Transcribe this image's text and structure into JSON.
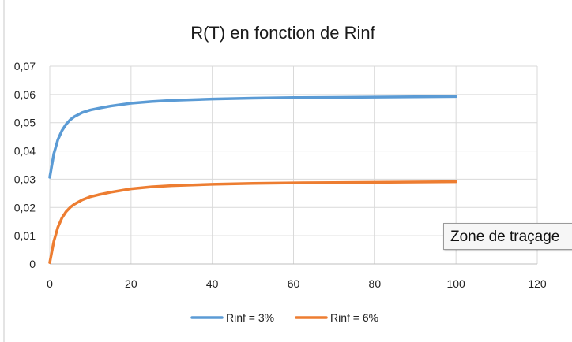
{
  "chart_data": {
    "type": "line",
    "title": "R(T) en fonction de Rinf",
    "xlabel": "",
    "ylabel": "",
    "xlim": [
      0,
      120
    ],
    "ylim": [
      0,
      0.07
    ],
    "x_ticks": [
      0,
      20,
      40,
      60,
      80,
      100,
      120
    ],
    "x_tick_labels": [
      "0",
      "20",
      "40",
      "60",
      "80",
      "100",
      "120"
    ],
    "y_ticks": [
      0,
      0.01,
      0.02,
      0.03,
      0.04,
      0.05,
      0.06,
      0.07
    ],
    "y_tick_labels": [
      "0",
      "0,01",
      "0,02",
      "0,03",
      "0,04",
      "0,05",
      "0,06",
      "0,07"
    ],
    "grid": true,
    "legend_position": "bottom",
    "x": [
      0,
      1,
      2,
      3,
      4,
      5,
      6,
      8,
      10,
      12,
      15,
      20,
      25,
      30,
      40,
      50,
      60,
      70,
      80,
      90,
      100
    ],
    "series": [
      {
        "name": "Rinf = 3%",
        "color": "#5b9bd5",
        "values": [
          0.0307,
          0.039,
          0.044,
          0.0472,
          0.0494,
          0.051,
          0.0521,
          0.0536,
          0.0545,
          0.0551,
          0.0559,
          0.0569,
          0.0575,
          0.0579,
          0.0584,
          0.0587,
          0.0589,
          0.059,
          0.0591,
          0.0592,
          0.0593
        ]
      },
      {
        "name": "Rinf = 6%",
        "color": "#ed7d31",
        "values": [
          0.0005,
          0.008,
          0.013,
          0.0163,
          0.0185,
          0.02,
          0.0211,
          0.0227,
          0.0238,
          0.0245,
          0.0254,
          0.0266,
          0.0273,
          0.0277,
          0.0282,
          0.0285,
          0.0287,
          0.0288,
          0.0289,
          0.029,
          0.0291
        ]
      }
    ]
  },
  "tooltip": {
    "label": "Zone de traçage"
  }
}
